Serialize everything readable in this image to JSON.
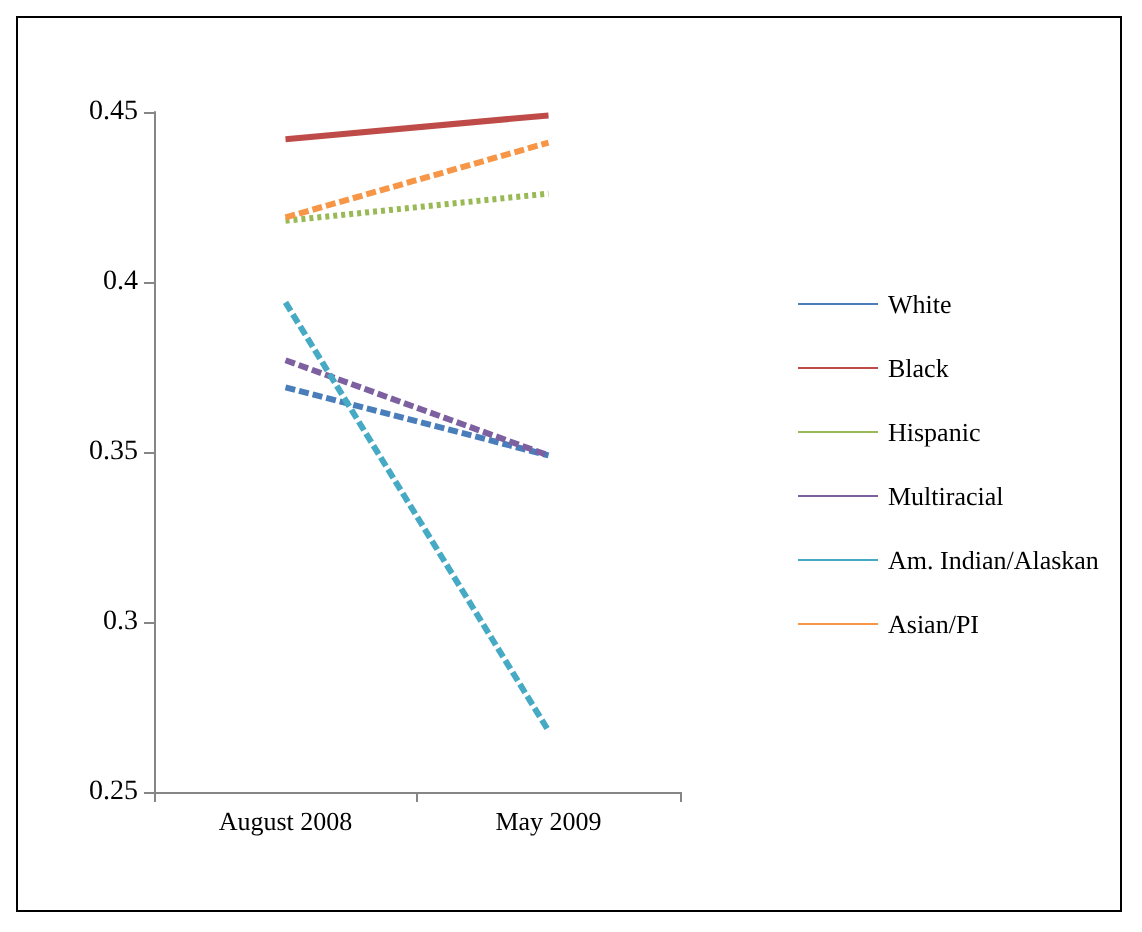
{
  "chart_data": {
    "type": "line",
    "categories": [
      "August 2008",
      "May 2009"
    ],
    "series": [
      {
        "name": "White",
        "color": "#4a7ebb",
        "line_style": "dashed",
        "values": [
          0.369,
          0.349
        ]
      },
      {
        "name": "Black",
        "color": "#be4b48",
        "line_style": "solid",
        "values": [
          0.442,
          0.449
        ]
      },
      {
        "name": "Hispanic",
        "color": "#98b954",
        "line_style": "dotted",
        "values": [
          0.418,
          0.426
        ]
      },
      {
        "name": "Multiracial",
        "color": "#7d60a0",
        "line_style": "dashed",
        "values": [
          0.377,
          0.349
        ]
      },
      {
        "name": "Am. Indian/Alaskan",
        "color": "#46aac5",
        "line_style": "dashed",
        "values": [
          0.394,
          0.268
        ]
      },
      {
        "name": "Asian/PI",
        "color": "#f79646",
        "line_style": "dashed",
        "values": [
          0.419,
          0.441
        ]
      }
    ],
    "ylim": [
      0.25,
      0.45
    ],
    "yticks": [
      0.25,
      0.3,
      0.35,
      0.4,
      0.45
    ],
    "grid": false,
    "legend": "right",
    "marker": "none"
  }
}
